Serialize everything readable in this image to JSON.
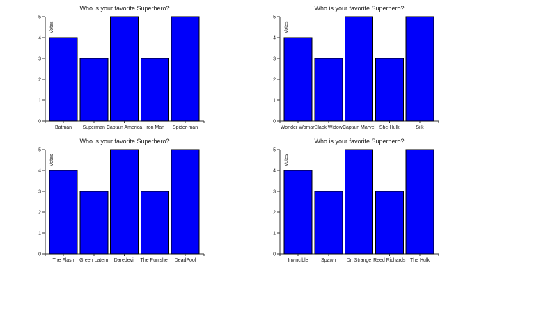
{
  "page": {
    "background": "#ffffff"
  },
  "style": {
    "bar_color": "#0000fa",
    "bar_border": "#000000",
    "axis_color": "#333333",
    "text_color": "#1a1a1a"
  },
  "chart_data": [
    {
      "type": "bar",
      "title": "Who is your favorite Superhero?",
      "xlabel": "",
      "ylabel": "Votes",
      "categories": [
        "Batman",
        "Superman",
        "Captain America",
        "Iron Man",
        "Spider-man"
      ],
      "values": [
        4,
        3,
        5,
        3,
        5
      ],
      "ylim": [
        0,
        5
      ],
      "yticks": [
        0,
        1,
        2,
        3,
        4,
        5
      ],
      "grid": false,
      "legend": "none"
    },
    {
      "type": "bar",
      "title": "Who is your favorite Superhero?",
      "xlabel": "",
      "ylabel": "Votes",
      "categories": [
        "Wonder Woman",
        "Black Widow",
        "Captain Marvel",
        "She-Hulk",
        "Silk"
      ],
      "values": [
        4,
        3,
        5,
        3,
        5
      ],
      "ylim": [
        0,
        5
      ],
      "yticks": [
        0,
        1,
        2,
        3,
        4,
        5
      ],
      "grid": false,
      "legend": "none"
    },
    {
      "type": "bar",
      "title": "Who is your favorite Superhero?",
      "xlabel": "",
      "ylabel": "Votes",
      "categories": [
        "The Flash",
        "Green Latern",
        "Daredevil",
        "The Punisher",
        "DeadPool"
      ],
      "values": [
        4,
        3,
        5,
        3,
        5
      ],
      "ylim": [
        0,
        5
      ],
      "yticks": [
        0,
        1,
        2,
        3,
        4,
        5
      ],
      "grid": false,
      "legend": "none"
    },
    {
      "type": "bar",
      "title": "Who is your favorite Superhero?",
      "xlabel": "",
      "ylabel": "Votes",
      "categories": [
        "Invincible",
        "Spawn",
        "Dr. Strange",
        "Reed Richards",
        "The Hulk"
      ],
      "values": [
        4,
        3,
        5,
        3,
        5
      ],
      "ylim": [
        0,
        5
      ],
      "yticks": [
        0,
        1,
        2,
        3,
        4,
        5
      ],
      "grid": false,
      "legend": "none"
    }
  ]
}
